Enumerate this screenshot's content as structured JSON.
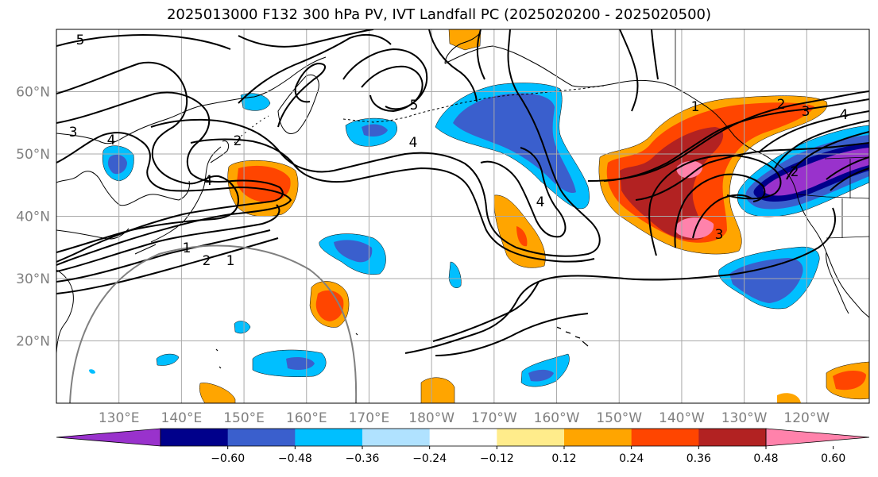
{
  "title": "2025013000 F132 300 hPa PV, IVT Landfall PC (2025020200 - 2025020500)",
  "map": {
    "lon_range": [
      120,
      250
    ],
    "lat_range": [
      10,
      70
    ],
    "lat_ticks": [
      {
        "value": 20,
        "label": "20°N"
      },
      {
        "value": 30,
        "label": "30°N"
      },
      {
        "value": 40,
        "label": "40°N"
      },
      {
        "value": 50,
        "label": "50°N"
      },
      {
        "value": 60,
        "label": "60°N"
      }
    ],
    "lon_ticks": [
      {
        "value": 130,
        "label": "130°E"
      },
      {
        "value": 140,
        "label": "140°E"
      },
      {
        "value": 150,
        "label": "150°E"
      },
      {
        "value": 160,
        "label": "160°E"
      },
      {
        "value": 170,
        "label": "170°E"
      },
      {
        "value": 180,
        "label": "180°W"
      },
      {
        "value": 190,
        "label": "170°W"
      },
      {
        "value": 200,
        "label": "160°W"
      },
      {
        "value": 210,
        "label": "150°W"
      },
      {
        "value": 220,
        "label": "140°W"
      },
      {
        "value": 230,
        "label": "130°W"
      },
      {
        "value": 240,
        "label": "120°W"
      }
    ]
  },
  "colorbar": {
    "boundaries": [
      -0.72,
      -0.6,
      -0.48,
      -0.36,
      -0.24,
      -0.12,
      0.12,
      0.24,
      0.36,
      0.48,
      0.6,
      0.72
    ],
    "tick_labels": [
      "−0.60",
      "−0.48",
      "−0.36",
      "−0.24",
      "−0.12",
      "0.12",
      "0.24",
      "0.36",
      "0.48",
      "0.60"
    ],
    "colors": [
      "#9932cc",
      "#00008b",
      "#3a5fcd",
      "#00bfff",
      "#b0e2ff",
      "#ffffff",
      "#ffec8b",
      "#ffa500",
      "#ff4500",
      "#b22222",
      "#ff82ab"
    ],
    "extend": "both"
  },
  "contour_labels": [
    "5",
    "3",
    "2",
    "4",
    "1",
    "5",
    "4",
    "4",
    "1",
    "2",
    "3",
    "4",
    "2",
    "3",
    "4",
    "2",
    "1"
  ],
  "colors": {
    "contour": "#000000",
    "grid": "#a9a9a9",
    "coast": "#000000",
    "circle": "#808080"
  }
}
